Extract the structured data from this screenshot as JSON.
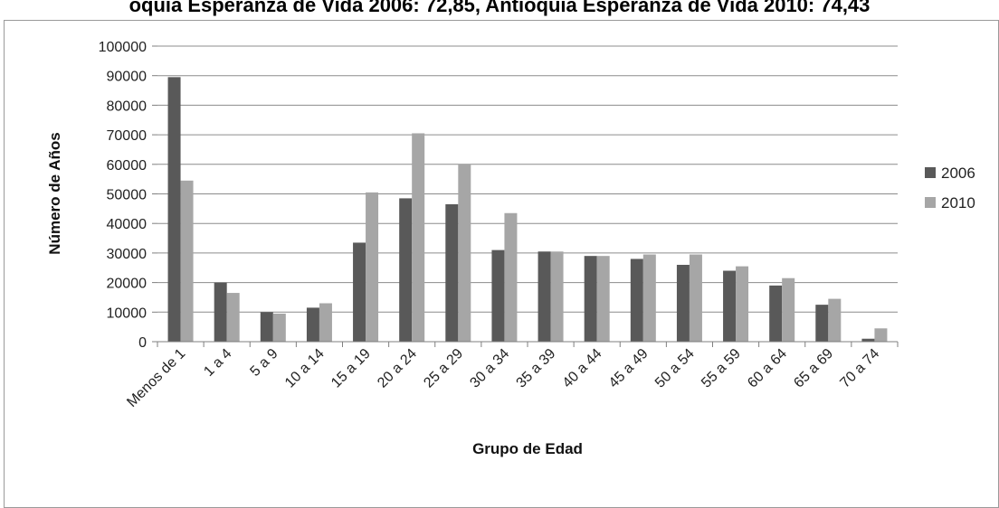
{
  "chart_data": {
    "type": "bar",
    "title": "oquia Esperanza de Vida 2006: 72,85, Antioquia Esperanza de Vida 2010: 74,43",
    "xlabel": "Grupo de Edad",
    "ylabel": "Número de Años",
    "ylim": [
      0,
      100000
    ],
    "yticks": [
      "0",
      "10000",
      "20000",
      "30000",
      "40000",
      "50000",
      "60000",
      "70000",
      "80000",
      "90000",
      "100000"
    ],
    "grid": true,
    "legend_position": "right",
    "categories": [
      "Menos de 1",
      "1 a 4",
      "5 a 9",
      "10 a 14",
      "15 a 19",
      "20 a 24",
      "25 a 29",
      "30 a 34",
      "35 a 39",
      "40 a 44",
      "45 a 49",
      "50 a 54",
      "55 a 59",
      "60 a 64",
      "65 a 69",
      "70 a 74"
    ],
    "series": [
      {
        "name": "2006",
        "color": "#595959",
        "values": [
          89500,
          20000,
          10000,
          11500,
          33500,
          48500,
          46500,
          31000,
          30500,
          29000,
          28000,
          26000,
          24000,
          19000,
          12500,
          1000
        ]
      },
      {
        "name": "2010",
        "color": "#a6a6a6",
        "values": [
          54500,
          16500,
          9500,
          13000,
          50500,
          70500,
          60000,
          43500,
          30500,
          29000,
          29500,
          29500,
          25500,
          21500,
          14500,
          4500
        ]
      }
    ]
  }
}
